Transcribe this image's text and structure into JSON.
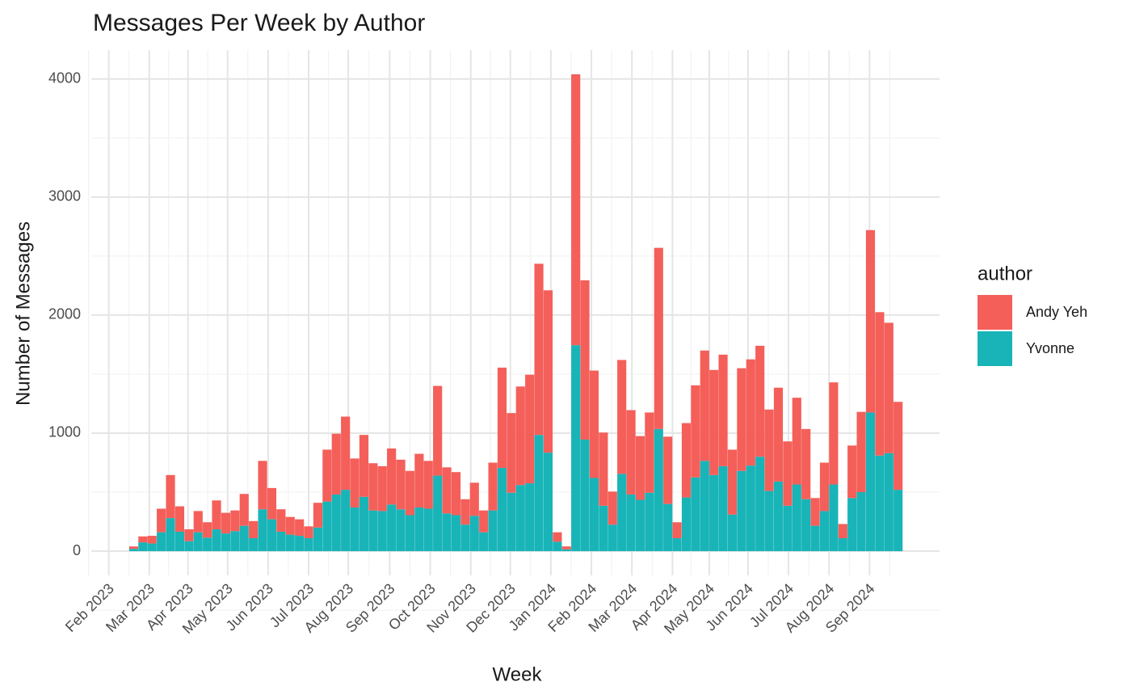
{
  "chart_data": {
    "type": "bar",
    "stacked": true,
    "title": "Messages Per Week by Author",
    "x_label": "Week",
    "y_label": "Number of Messages",
    "legend_title": "author",
    "legend": "right",
    "grid": true,
    "categories": [
      null,
      null,
      null,
      null,
      null,
      null,
      null,
      null,
      null,
      null,
      null,
      null,
      null,
      null,
      null,
      null,
      null,
      null,
      null,
      null,
      null,
      null,
      null,
      null,
      null,
      null,
      null,
      null,
      null,
      null,
      null,
      null,
      null,
      null,
      null,
      null,
      null,
      null,
      null,
      null,
      null,
      null,
      null,
      null,
      null,
      null,
      null,
      null,
      null,
      null,
      null,
      null,
      null,
      null,
      null,
      null,
      null,
      null,
      null,
      null,
      null,
      null,
      null,
      null,
      null,
      null,
      null,
      null,
      null,
      null,
      null,
      null,
      null,
      null,
      null,
      null,
      null,
      null,
      null,
      null,
      null,
      null,
      null,
      null
    ],
    "series": [
      {
        "name": "Andy Yeh",
        "color": "#f45f5a",
        "values": [
          20,
          50,
          65,
          200,
          365,
          215,
          100,
          180,
          130,
          245,
          175,
          175,
          270,
          145,
          410,
          265,
          190,
          150,
          140,
          100,
          210,
          440,
          515,
          620,
          415,
          525,
          400,
          380,
          475,
          420,
          375,
          455,
          405,
          760,
          390,
          365,
          215,
          280,
          185,
          405,
          850,
          675,
          835,
          920,
          1450,
          1375,
          80,
          25,
          2295,
          1350,
          910,
          620,
          280,
          965,
          715,
          540,
          680,
          1535,
          570,
          135,
          630,
          780,
          935,
          890,
          945,
          550,
          870,
          900,
          940,
          690,
          795,
          545,
          735,
          595,
          235,
          410,
          865,
          120,
          445,
          680,
          1545,
          1215,
          1105,
          745
        ]
      },
      {
        "name": "Yvonne",
        "color": "#18b4b8",
        "values": [
          20,
          75,
          65,
          160,
          280,
          165,
          85,
          160,
          115,
          185,
          150,
          170,
          215,
          110,
          355,
          270,
          165,
          140,
          130,
          110,
          200,
          420,
          480,
          520,
          370,
          460,
          345,
          340,
          395,
          355,
          305,
          370,
          360,
          640,
          320,
          305,
          225,
          300,
          160,
          345,
          705,
          495,
          560,
          575,
          985,
          835,
          80,
          15,
          1745,
          945,
          620,
          385,
          225,
          655,
          480,
          435,
          495,
          1035,
          400,
          110,
          455,
          625,
          765,
          645,
          720,
          310,
          680,
          725,
          800,
          510,
          590,
          385,
          565,
          440,
          215,
          340,
          565,
          110,
          450,
          500,
          1175,
          810,
          830,
          520
        ]
      }
    ],
    "xlim": [
      -4.6,
      87.5
    ],
    "xticks": [
      {
        "value": -2.7,
        "label": "Feb 2023"
      },
      {
        "value": 1.7,
        "label": "Mar 2023"
      },
      {
        "value": 5.9,
        "label": "Apr 2023"
      },
      {
        "value": 10.2,
        "label": "May 2023"
      },
      {
        "value": 14.6,
        "label": "Jun 2023"
      },
      {
        "value": 19.0,
        "label": "Jul 2023"
      },
      {
        "value": 23.3,
        "label": "Aug 2023"
      },
      {
        "value": 27.8,
        "label": "Sep 2023"
      },
      {
        "value": 32.2,
        "label": "Oct 2023"
      },
      {
        "value": 36.6,
        "label": "Nov 2023"
      },
      {
        "value": 40.9,
        "label": "Dec 2023"
      },
      {
        "value": 45.3,
        "label": "Jan 2024"
      },
      {
        "value": 49.7,
        "label": "Feb 2024"
      },
      {
        "value": 54.1,
        "label": "Mar 2024"
      },
      {
        "value": 58.5,
        "label": "Apr 2024"
      },
      {
        "value": 62.5,
        "label": "May 2024"
      },
      {
        "value": 66.7,
        "label": "Jun 2024"
      },
      {
        "value": 71.1,
        "label": "Jul 2024"
      },
      {
        "value": 75.5,
        "label": "Aug 2024"
      },
      {
        "value": 79.9,
        "label": "Sep 2024"
      }
    ],
    "ylim": [
      -205,
      4245
    ],
    "yticks": [
      0,
      1000,
      2000,
      3000,
      4000
    ]
  }
}
